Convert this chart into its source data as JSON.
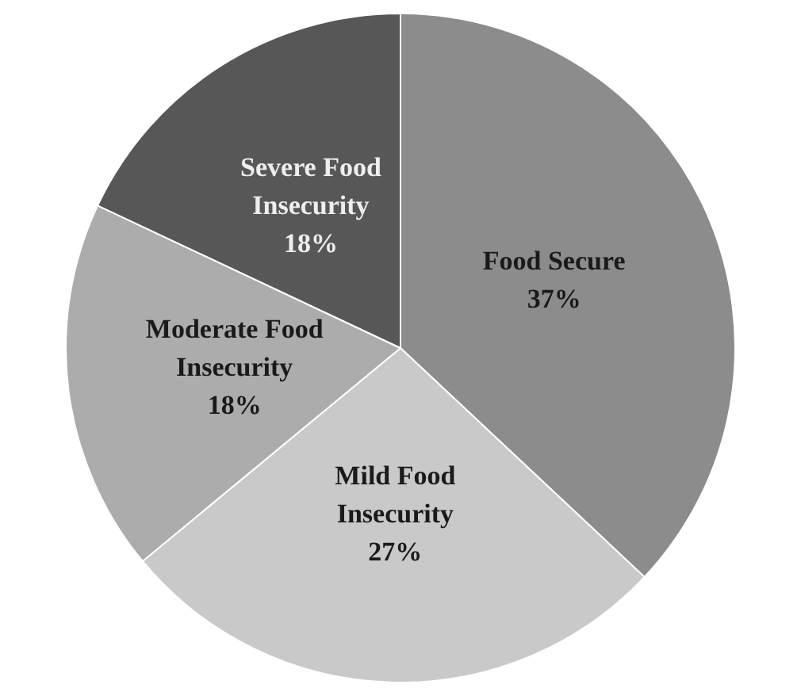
{
  "chart_data": {
    "type": "pie",
    "categories": [
      "Food Secure",
      "Mild Food Insecurity",
      "Moderate Food Insecurity",
      "Severe Food Insecurity"
    ],
    "values": [
      37,
      27,
      18,
      18
    ],
    "value_labels": [
      "37%",
      "27%",
      "18%",
      "18%"
    ],
    "colors": [
      "#8c8c8c",
      "#c9c9c9",
      "#acacac",
      "#575757"
    ],
    "legend": false
  }
}
